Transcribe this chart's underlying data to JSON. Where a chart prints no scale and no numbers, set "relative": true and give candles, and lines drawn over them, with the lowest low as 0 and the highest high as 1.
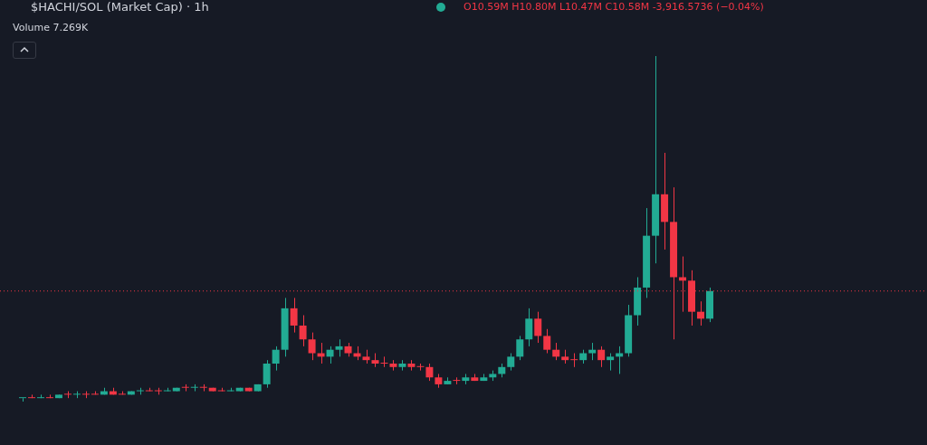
{
  "chart_data": {
    "type": "candlestick",
    "title": "$HACHI/SOL (Market Cap) · 1h",
    "relative": true,
    "annotations": [
      "Volume 7.269K",
      "O10.59M H10.80M L10.47M C10.58M -3,916.5736 (−0.04%)"
    ],
    "categories": [
      null,
      null,
      null,
      null,
      null,
      null,
      null,
      null,
      null,
      null,
      null,
      null,
      null,
      null,
      null,
      null,
      null,
      null,
      null,
      null,
      null,
      null,
      null,
      null,
      null,
      null,
      null,
      null,
      null,
      null,
      null,
      null,
      null,
      null,
      null,
      null,
      null,
      null,
      null,
      null,
      null,
      null,
      null,
      null,
      null,
      null,
      null,
      null,
      null,
      null,
      null,
      null,
      null,
      null,
      null,
      null,
      null,
      null,
      null,
      null,
      null,
      null,
      null,
      null,
      null,
      null,
      null,
      null,
      null,
      null,
      null,
      null,
      null,
      null,
      null,
      null,
      null
    ],
    "ohlc": [
      [
        0.01,
        0.01,
        0.0,
        0.01
      ],
      [
        0.01,
        0.02,
        0.01,
        0.01
      ],
      [
        0.01,
        0.02,
        0.01,
        0.01
      ],
      [
        0.01,
        0.02,
        0.01,
        0.01
      ],
      [
        0.01,
        0.02,
        0.01,
        0.02
      ],
      [
        0.02,
        0.03,
        0.01,
        0.02
      ],
      [
        0.02,
        0.03,
        0.01,
        0.02
      ],
      [
        0.02,
        0.03,
        0.01,
        0.02
      ],
      [
        0.02,
        0.03,
        0.02,
        0.02
      ],
      [
        0.02,
        0.04,
        0.02,
        0.03
      ],
      [
        0.03,
        0.04,
        0.02,
        0.02
      ],
      [
        0.02,
        0.03,
        0.02,
        0.02
      ],
      [
        0.02,
        0.03,
        0.02,
        0.03
      ],
      [
        0.03,
        0.04,
        0.02,
        0.03
      ],
      [
        0.03,
        0.04,
        0.03,
        0.03
      ],
      [
        0.03,
        0.04,
        0.02,
        0.03
      ],
      [
        0.03,
        0.04,
        0.03,
        0.03
      ],
      [
        0.03,
        0.04,
        0.03,
        0.04
      ],
      [
        0.04,
        0.05,
        0.03,
        0.04
      ],
      [
        0.04,
        0.05,
        0.03,
        0.04
      ],
      [
        0.04,
        0.05,
        0.03,
        0.04
      ],
      [
        0.04,
        0.04,
        0.03,
        0.03
      ],
      [
        0.03,
        0.04,
        0.03,
        0.03
      ],
      [
        0.03,
        0.04,
        0.03,
        0.03
      ],
      [
        0.03,
        0.04,
        0.03,
        0.04
      ],
      [
        0.04,
        0.04,
        0.03,
        0.03
      ],
      [
        0.03,
        0.05,
        0.03,
        0.05
      ],
      [
        0.05,
        0.12,
        0.04,
        0.11
      ],
      [
        0.11,
        0.16,
        0.09,
        0.15
      ],
      [
        0.15,
        0.3,
        0.13,
        0.27
      ],
      [
        0.27,
        0.3,
        0.2,
        0.22
      ],
      [
        0.22,
        0.25,
        0.16,
        0.18
      ],
      [
        0.18,
        0.2,
        0.12,
        0.14
      ],
      [
        0.14,
        0.17,
        0.11,
        0.13
      ],
      [
        0.13,
        0.16,
        0.11,
        0.15
      ],
      [
        0.15,
        0.18,
        0.13,
        0.16
      ],
      [
        0.16,
        0.17,
        0.13,
        0.14
      ],
      [
        0.14,
        0.16,
        0.12,
        0.13
      ],
      [
        0.13,
        0.15,
        0.11,
        0.12
      ],
      [
        0.12,
        0.14,
        0.1,
        0.11
      ],
      [
        0.11,
        0.13,
        0.1,
        0.11
      ],
      [
        0.11,
        0.12,
        0.09,
        0.1
      ],
      [
        0.1,
        0.12,
        0.09,
        0.11
      ],
      [
        0.11,
        0.12,
        0.09,
        0.1
      ],
      [
        0.1,
        0.11,
        0.09,
        0.1
      ],
      [
        0.1,
        0.11,
        0.06,
        0.07
      ],
      [
        0.07,
        0.08,
        0.04,
        0.05
      ],
      [
        0.05,
        0.07,
        0.05,
        0.06
      ],
      [
        0.06,
        0.07,
        0.05,
        0.06
      ],
      [
        0.06,
        0.08,
        0.05,
        0.07
      ],
      [
        0.07,
        0.08,
        0.06,
        0.06
      ],
      [
        0.06,
        0.08,
        0.06,
        0.07
      ],
      [
        0.07,
        0.09,
        0.06,
        0.08
      ],
      [
        0.08,
        0.11,
        0.07,
        0.1
      ],
      [
        0.1,
        0.14,
        0.09,
        0.13
      ],
      [
        0.13,
        0.19,
        0.12,
        0.18
      ],
      [
        0.18,
        0.27,
        0.16,
        0.24
      ],
      [
        0.24,
        0.26,
        0.17,
        0.19
      ],
      [
        0.19,
        0.21,
        0.14,
        0.15
      ],
      [
        0.15,
        0.17,
        0.12,
        0.13
      ],
      [
        0.13,
        0.15,
        0.11,
        0.12
      ],
      [
        0.12,
        0.14,
        0.1,
        0.12
      ],
      [
        0.12,
        0.15,
        0.11,
        0.14
      ],
      [
        0.14,
        0.17,
        0.12,
        0.15
      ],
      [
        0.15,
        0.16,
        0.1,
        0.12
      ],
      [
        0.12,
        0.14,
        0.09,
        0.13
      ],
      [
        0.13,
        0.16,
        0.08,
        0.14
      ],
      [
        0.14,
        0.28,
        0.13,
        0.25
      ],
      [
        0.25,
        0.36,
        0.22,
        0.33
      ],
      [
        0.33,
        0.56,
        0.3,
        0.48
      ],
      [
        0.48,
        1.0,
        0.4,
        0.6
      ],
      [
        0.6,
        0.72,
        0.44,
        0.52
      ],
      [
        0.52,
        0.62,
        0.18,
        0.36
      ],
      [
        0.36,
        0.42,
        0.26,
        0.35
      ],
      [
        0.35,
        0.38,
        0.22,
        0.26
      ],
      [
        0.26,
        0.29,
        0.22,
        0.24
      ],
      [
        0.24,
        0.33,
        0.23,
        0.32
      ]
    ],
    "colors": [
      "#22ab94",
      "#f23645",
      "#22ab94",
      "#f23645",
      "#22ab94",
      "#f23645",
      "#22ab94",
      "#f23645",
      "#f23645",
      "#22ab94",
      "#f23645",
      "#f23645",
      "#22ab94",
      "#22ab94",
      "#f23645",
      "#f23645",
      "#22ab94",
      "#22ab94",
      "#f23645",
      "#22ab94",
      "#f23645",
      "#f23645",
      "#f23645",
      "#22ab94",
      "#22ab94",
      "#f23645",
      "#22ab94",
      "#22ab94",
      "#22ab94",
      "#22ab94",
      "#f23645",
      "#f23645",
      "#f23645",
      "#f23645",
      "#22ab94",
      "#22ab94",
      "#f23645",
      "#f23645",
      "#f23645",
      "#f23645",
      "#f23645",
      "#f23645",
      "#22ab94",
      "#f23645",
      "#f23645",
      "#f23645",
      "#f23645",
      "#22ab94",
      "#f23645",
      "#22ab94",
      "#f23645",
      "#22ab94",
      "#22ab94",
      "#22ab94",
      "#22ab94",
      "#22ab94",
      "#22ab94",
      "#f23645",
      "#f23645",
      "#f23645",
      "#f23645",
      "#f23645",
      "#22ab94",
      "#22ab94",
      "#f23645",
      "#22ab94",
      "#22ab94",
      "#22ab94",
      "#22ab94",
      "#22ab94",
      "#22ab94",
      "#f23645",
      "#f23645",
      "#f23645",
      "#f23645",
      "#f23645",
      "#22ab94"
    ],
    "ref_lines": [
      {
        "axis": "y",
        "value": 0.32,
        "label": null,
        "color": "#f23645",
        "line_style": "dotted"
      }
    ]
  }
}
